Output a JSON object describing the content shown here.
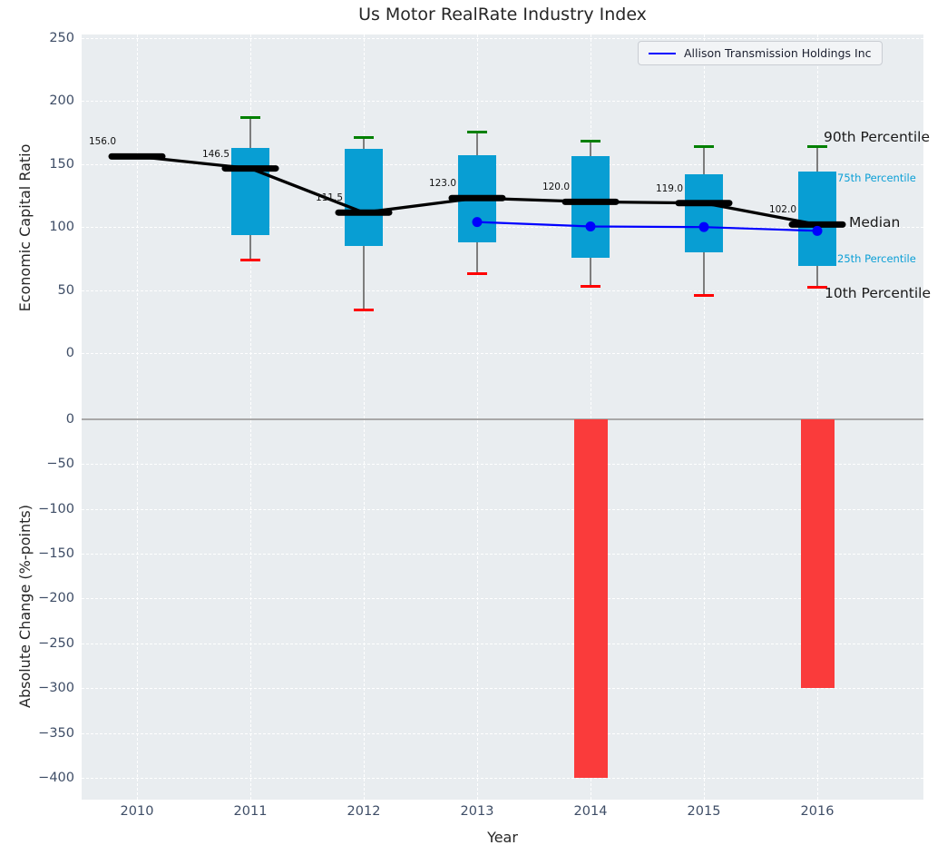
{
  "title": "Us Motor RealRate Industry Index",
  "legend": {
    "label": "Allison Transmission Holdings Inc"
  },
  "percentile_labels": {
    "p90": "90th Percentile",
    "p75": "75th Percentile",
    "median": "Median",
    "p25": "25th Percentile",
    "p10": "10th Percentile"
  },
  "colors": {
    "plot_bg": "#e9edf0",
    "grid": "#ffffff",
    "box_fill": "#089ed3",
    "cap_top_green": "#008000",
    "cap_bottom_red": "#ff0000",
    "whisker_gray": "#7d7d7d",
    "median_black": "#000000",
    "company_line_blue": "#0000ff",
    "bar_red": "#fa3b3b",
    "tick_text": "#3e4d66",
    "percentile_cyan": "#0b9fd6",
    "zero_line_gray": "#a8a8a8"
  },
  "chart_data": [
    {
      "type": "box-with-line",
      "title": "Us Motor RealRate Industry Index",
      "ylabel": "Economic Capital Ratio",
      "ylim": [
        -43,
        253
      ],
      "yticks": [
        250,
        200,
        150,
        100,
        50,
        0
      ],
      "ytick_labels": [
        "250",
        "200",
        "150",
        "100",
        "50",
        "0"
      ],
      "x": [
        2010,
        2011,
        2012,
        2013,
        2014,
        2015,
        2016
      ],
      "grid": true,
      "legend_position": "upper right",
      "boxes": [
        {
          "year": 2010,
          "median": 156.0,
          "label": "156.0"
        },
        {
          "year": 2011,
          "p10": 74,
          "p25": 94,
          "median": 146.5,
          "p75": 163,
          "p90": 187,
          "label": "146.5"
        },
        {
          "year": 2012,
          "p10": 34,
          "p25": 85,
          "median": 111.5,
          "p75": 162,
          "p90": 171,
          "label": "111.5"
        },
        {
          "year": 2013,
          "p10": 63,
          "p25": 88,
          "median": 123.0,
          "p75": 157,
          "p90": 175,
          "label": "123.0"
        },
        {
          "year": 2014,
          "p10": 53,
          "p25": 76,
          "median": 120.0,
          "p75": 156,
          "p90": 168,
          "label": "120.0"
        },
        {
          "year": 2015,
          "p10": 46,
          "p25": 80,
          "median": 119.0,
          "p75": 142,
          "p90": 164,
          "label": "119.0"
        },
        {
          "year": 2016,
          "p10": 52,
          "p25": 69,
          "median": 102.0,
          "p75": 144,
          "p90": 164,
          "label": "102.0"
        }
      ],
      "median_series": {
        "name": "Median",
        "x": [
          2010,
          2011,
          2012,
          2013,
          2014,
          2015,
          2016
        ],
        "values": [
          156.0,
          146.5,
          111.5,
          123.0,
          120.0,
          119.0,
          102.0
        ]
      },
      "series": [
        {
          "name": "Allison Transmission Holdings Inc",
          "x": [
            2013,
            2014,
            2015,
            2016
          ],
          "values": [
            104,
            100.5,
            100,
            97
          ]
        }
      ]
    },
    {
      "type": "bar",
      "ylabel": "Absolute Change (%-points)",
      "xlabel": "Year",
      "ylim": [
        -424,
        13
      ],
      "yticks": [
        0,
        -50,
        -100,
        -150,
        -200,
        -250,
        -300,
        -350,
        -400
      ],
      "ytick_labels": [
        "0",
        "−50",
        "−100",
        "−150",
        "−200",
        "−250",
        "−300",
        "−350",
        "−400"
      ],
      "categories": [
        "2010",
        "2011",
        "2012",
        "2013",
        "2014",
        "2015",
        "2016"
      ],
      "values": [
        null,
        null,
        null,
        null,
        -400,
        null,
        -300
      ],
      "grid": true
    }
  ]
}
